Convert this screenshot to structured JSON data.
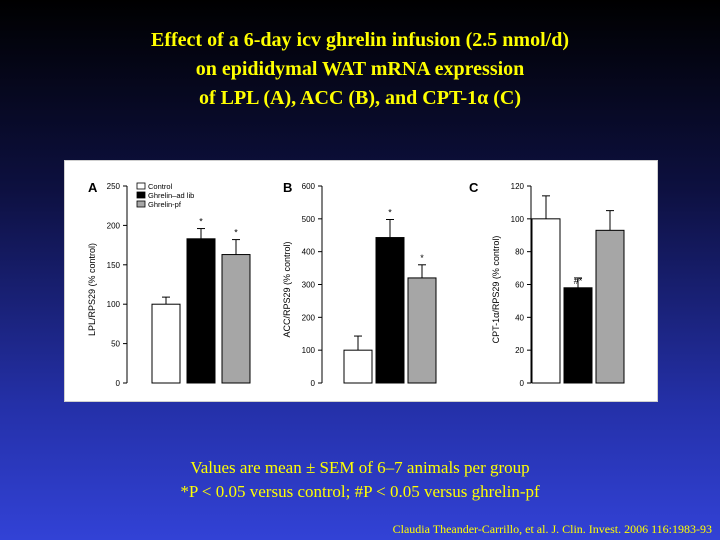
{
  "slide": {
    "title_lines": [
      "Effect of a 6-day icv ghrelin infusion (2.5 nmol/d)",
      "on epididymal WAT mRNA expression",
      "of LPL (A), ACC (B), and CPT-1α (C)"
    ],
    "notes": [
      "Values are mean ± SEM of 6–7 animals per group",
      "*P < 0.05 versus control; #P < 0.05 versus ghrelin-pf"
    ],
    "citation": "Claudia Theander-Carrillo, et al. J. Clin. Invest. 2006 116:1983-93",
    "text_color": "#ffff00"
  },
  "legend": [
    {
      "label": "Control",
      "color": "#ffffff"
    },
    {
      "label": "Ghrelin–ad lib",
      "color": "#000000"
    },
    {
      "label": "Ghrelin-pf",
      "color": "#a6a6a6"
    }
  ],
  "chart_data": [
    {
      "panel": "A",
      "type": "bar",
      "ylabel": "LPL/RPS29 (% control)",
      "ylim": [
        0,
        250
      ],
      "yticks": [
        0,
        50,
        100,
        150,
        200,
        250
      ],
      "categories": [
        "Control",
        "Ghrelin–ad lib",
        "Ghrelin-pf"
      ],
      "values": [
        100,
        183,
        163
      ],
      "errors": [
        9,
        13,
        19
      ],
      "annotations": [
        "",
        "*",
        "*"
      ]
    },
    {
      "panel": "B",
      "type": "bar",
      "ylabel": "ACC/RPS29 (% control)",
      "ylim": [
        0,
        600
      ],
      "yticks": [
        0,
        100,
        200,
        300,
        400,
        500,
        600
      ],
      "categories": [
        "Control",
        "Ghrelin–ad lib",
        "Ghrelin-pf"
      ],
      "values": [
        100,
        443,
        320
      ],
      "errors": [
        43,
        55,
        40
      ],
      "annotations": [
        "",
        "*",
        "*"
      ]
    },
    {
      "panel": "C",
      "type": "bar",
      "ylabel": "CPT-1α/RPS29 (% control)",
      "ylim": [
        0,
        120
      ],
      "yticks": [
        0,
        20,
        40,
        60,
        80,
        100,
        120
      ],
      "categories": [
        "Control",
        "Ghrelin–ad lib",
        "Ghrelin-pf"
      ],
      "values": [
        100,
        58,
        93
      ],
      "errors": [
        14,
        6,
        12
      ],
      "annotations": [
        "",
        "#*",
        ""
      ]
    }
  ]
}
